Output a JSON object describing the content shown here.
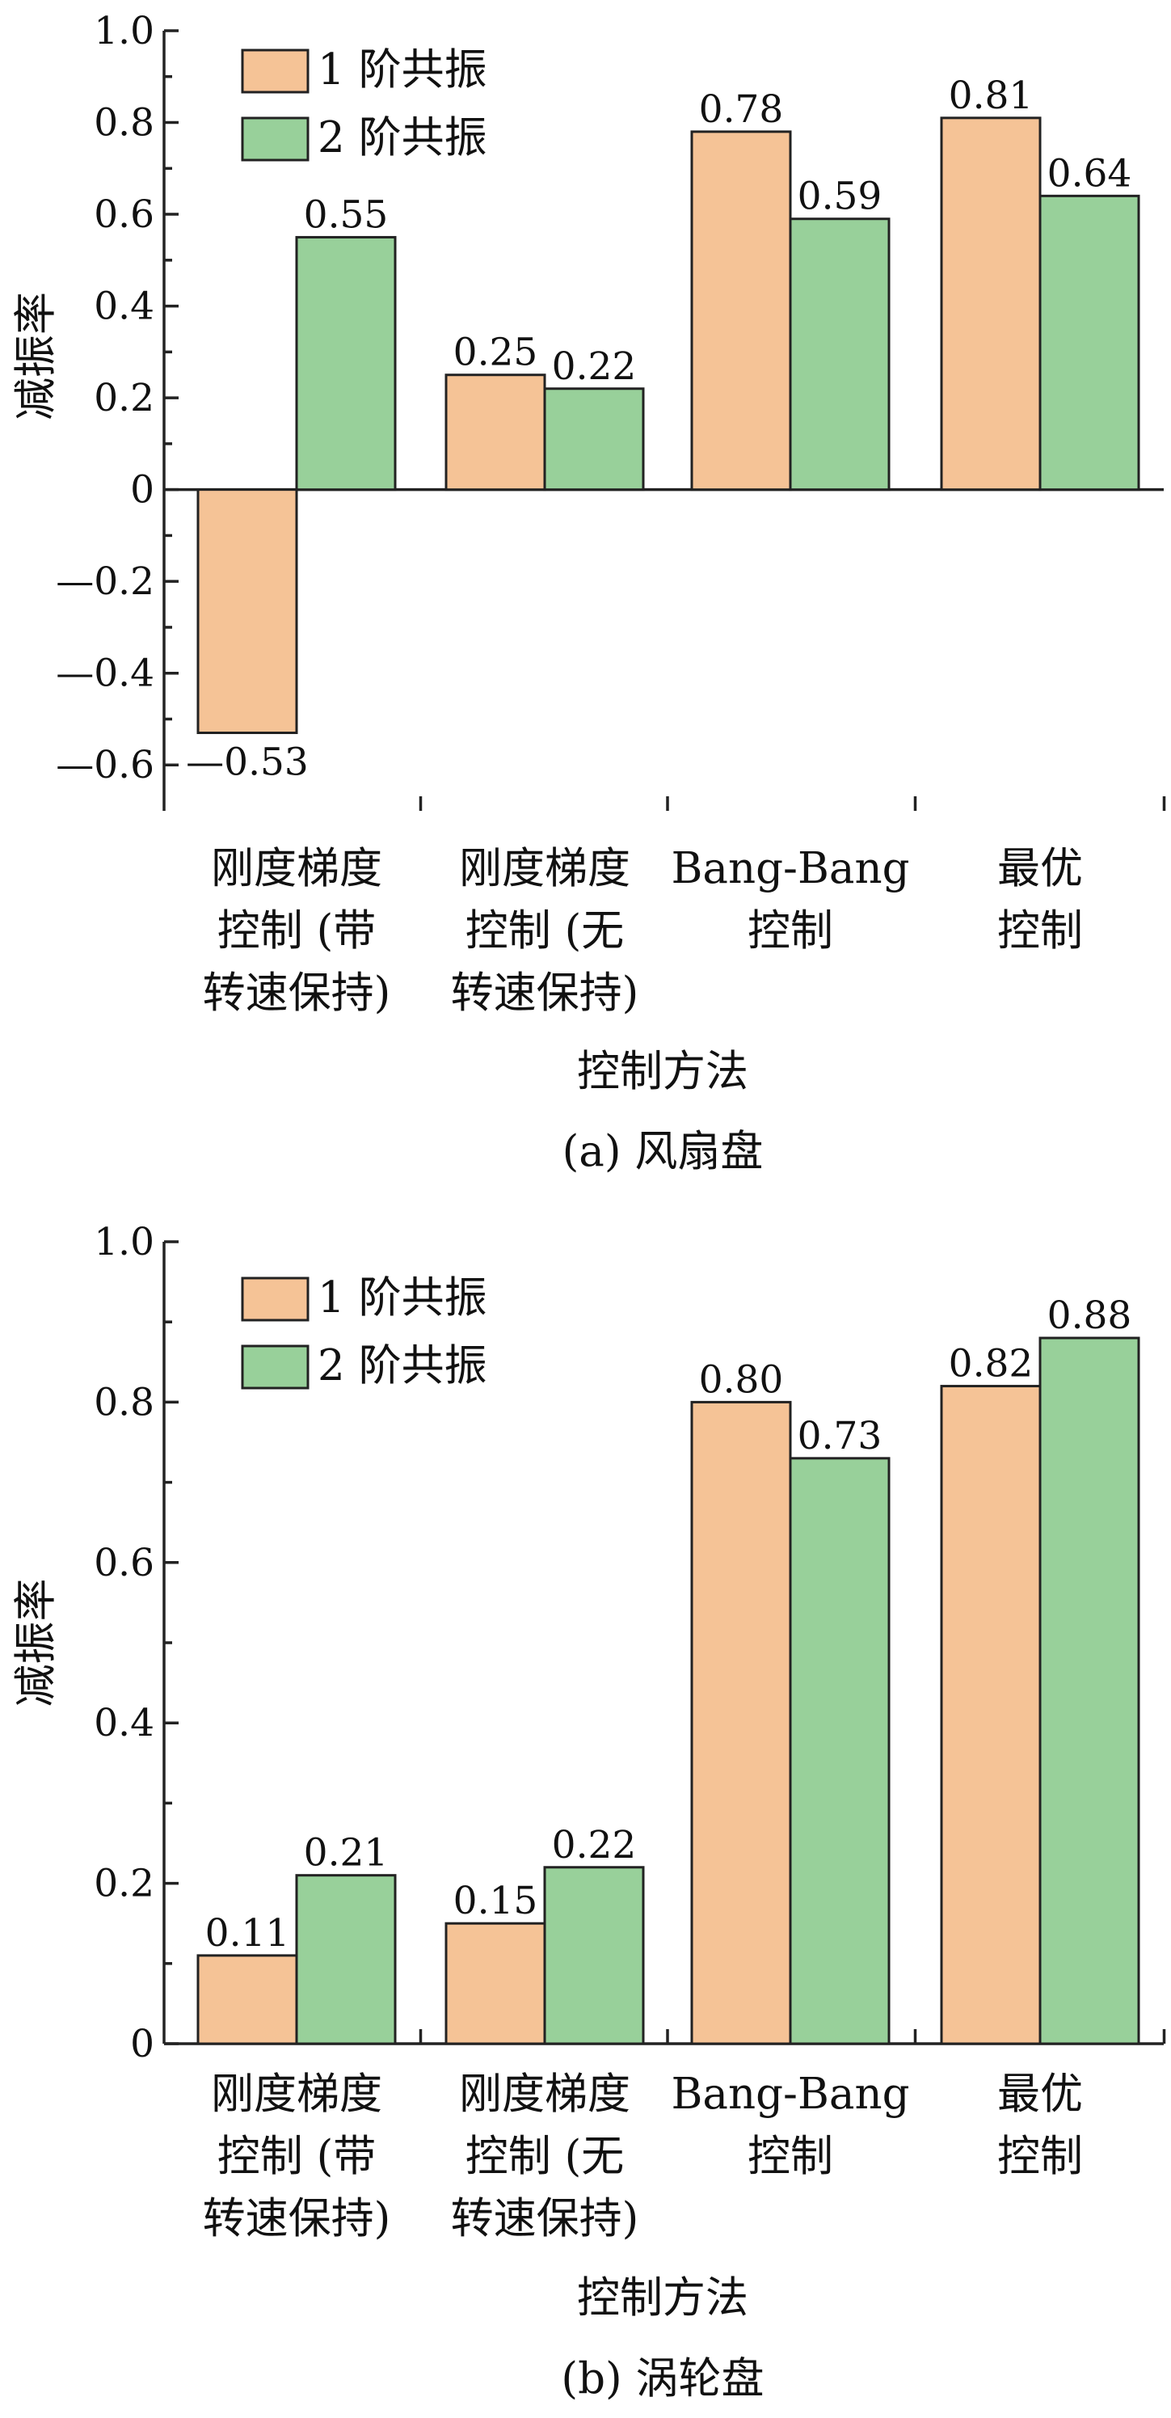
{
  "figure": {
    "charts": [
      {
        "caption": "(a)  风扇盘",
        "panel": "a"
      },
      {
        "caption": "(b)  涡轮盘",
        "panel": "b"
      }
    ]
  },
  "chart_data": [
    {
      "type": "bar",
      "categories": [
        [
          "刚度梯度",
          "控制  (带",
          "转速保持)"
        ],
        [
          "刚度梯度",
          "控制  (无",
          "转速保持)"
        ],
        [
          "Bang-Bang",
          "控制"
        ],
        [
          "最优",
          "控制"
        ]
      ],
      "series": [
        {
          "name": "1 阶共振",
          "values": [
            -0.53,
            0.25,
            0.78,
            0.81
          ],
          "labels": [
            "—0.53",
            "0.25",
            "0.78",
            "0.81"
          ],
          "color": "#f5c396"
        },
        {
          "name": "2 阶共振",
          "values": [
            0.55,
            0.22,
            0.59,
            0.64
          ],
          "labels": [
            "0.55",
            "0.22",
            "0.59",
            "0.64"
          ],
          "color": "#98d09a"
        }
      ],
      "xlabel": "控制方法",
      "ylabel": "减振率",
      "ylim": [
        -0.7,
        1.0
      ],
      "yticks": [
        1.0,
        0.8,
        0.6,
        0.4,
        0.2,
        0,
        -0.2,
        -0.4,
        -0.6
      ],
      "ytick_labels": [
        "1.0",
        "0.8",
        "0.6",
        "0.4",
        "0.2",
        "0",
        "—0.2",
        "—0.4",
        "—0.6"
      ],
      "legend_position": "top-left",
      "grid": false
    },
    {
      "type": "bar",
      "categories": [
        [
          "刚度梯度",
          "控制  (带",
          "转速保持)"
        ],
        [
          "刚度梯度",
          "控制  (无",
          "转速保持)"
        ],
        [
          "Bang-Bang",
          "控制"
        ],
        [
          "最优",
          "控制"
        ]
      ],
      "series": [
        {
          "name": "1 阶共振",
          "values": [
            0.11,
            0.15,
            0.8,
            0.82
          ],
          "labels": [
            "0.11",
            "0.15",
            "0.80",
            "0.82"
          ],
          "color": "#f5c396"
        },
        {
          "name": "2 阶共振",
          "values": [
            0.21,
            0.22,
            0.73,
            0.88
          ],
          "labels": [
            "0.21",
            "0.22",
            "0.73",
            "0.88"
          ],
          "color": "#98d09a"
        }
      ],
      "xlabel": "控制方法",
      "ylabel": "减振率",
      "ylim": [
        0,
        1.0
      ],
      "yticks": [
        1.0,
        0.8,
        0.6,
        0.4,
        0.2,
        0
      ],
      "ytick_labels": [
        "1.0",
        "0.8",
        "0.6",
        "0.4",
        "0.2",
        "0"
      ],
      "legend_position": "top-left",
      "grid": false
    }
  ]
}
